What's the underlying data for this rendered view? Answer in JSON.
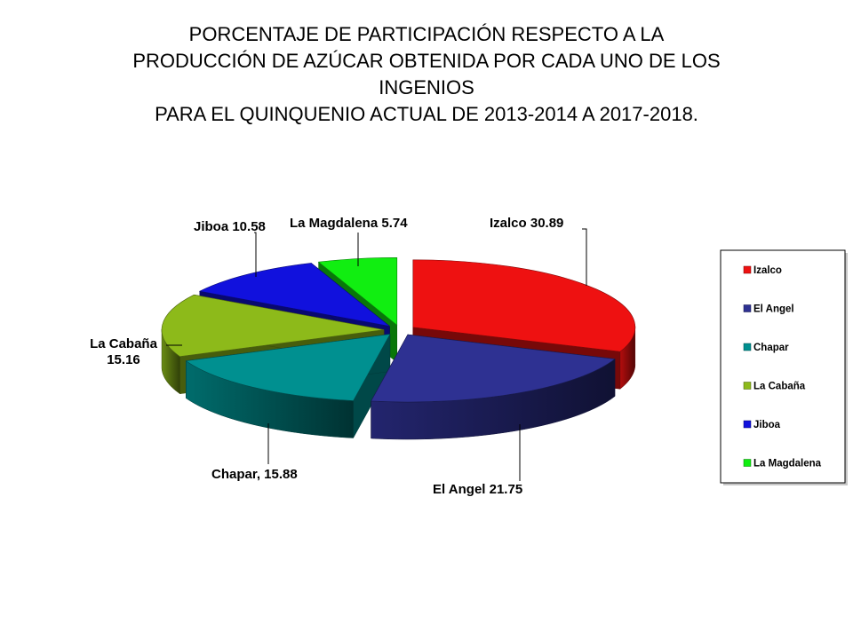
{
  "title_lines": [
    "PORCENTAJE  DE PARTICIPACIÓN  RESPECTO  A  LA",
    "PRODUCCIÓN  DE  AZÚCAR OBTENIDA POR CADA UNO DE LOS",
    "INGENIOS",
    "PARA EL QUINQUENIO ACTUAL  DE  2013-2014   A   2017-2018."
  ],
  "chart_data": {
    "type": "pie",
    "style": "3d-exploded",
    "title": "PORCENTAJE  DE PARTICIPACIÓN  RESPECTO  A  LA PRODUCCIÓN  DE  AZÚCAR OBTENIDA POR CADA UNO DE LOS INGENIOS PARA EL QUINQUENIO ACTUAL  DE  2013-2014   A   2017-2018.",
    "legend_position": "right",
    "slices": [
      {
        "name": "Izalco",
        "value": 30.89,
        "label_lines": [
          "Izalco 30.89"
        ],
        "color": "#ee1111"
      },
      {
        "name": "El Angel",
        "value": 21.75,
        "label_lines": [
          "El Angel 21.75"
        ],
        "color": "#2e3192"
      },
      {
        "name": "Chapar",
        "value": 15.88,
        "label_lines": [
          "Chapar, 15.88"
        ],
        "color": "#009090"
      },
      {
        "name": "La Cabaña",
        "value": 15.16,
        "label_lines": [
          "La Cabaña",
          "15.16"
        ],
        "color": "#8dba1a"
      },
      {
        "name": "Jiboa",
        "value": 10.58,
        "label_lines": [
          "Jiboa  10.58"
        ],
        "color": "#1111dd"
      },
      {
        "name": "La Magdalena",
        "value": 5.74,
        "label_lines": [
          "La Magdalena 5.74"
        ],
        "color": "#11ee11"
      }
    ]
  }
}
